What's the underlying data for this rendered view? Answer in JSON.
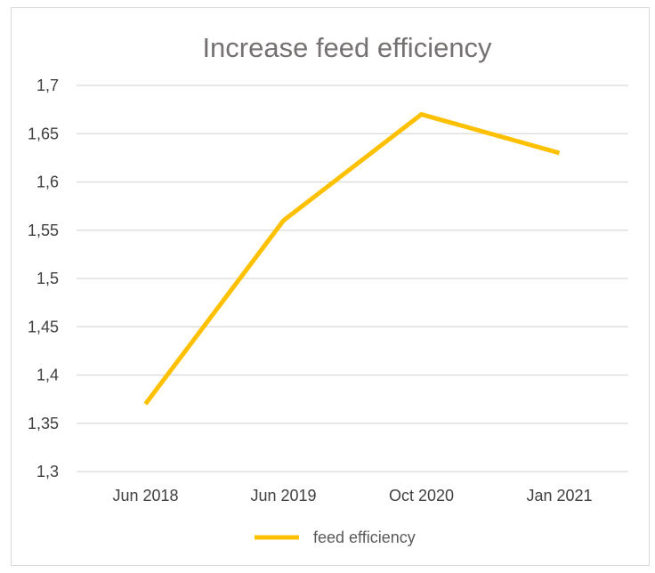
{
  "chart_data": {
    "type": "line",
    "title": "Increase feed efficiency",
    "xlabel": "",
    "ylabel": "",
    "categories": [
      "Jun 2018",
      "Jun 2019",
      "Oct 2020",
      "Jan 2021"
    ],
    "series": [
      {
        "name": "feed efficiency",
        "values": [
          1.37,
          1.56,
          1.67,
          1.63
        ],
        "color": "#FFC000"
      }
    ],
    "ylim": [
      1.3,
      1.7
    ],
    "yticks": [
      "1,3",
      "1,35",
      "1,4",
      "1,45",
      "1,5",
      "1,55",
      "1,6",
      "1,65",
      "1,7"
    ],
    "grid": true,
    "legend": "bottom"
  }
}
